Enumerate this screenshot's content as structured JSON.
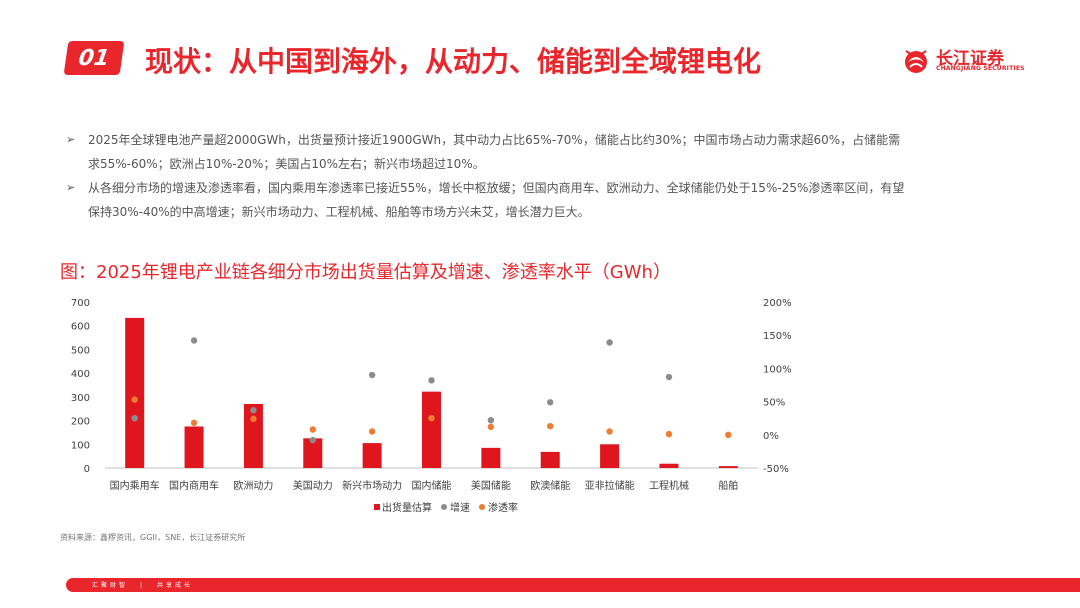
{
  "header": {
    "badge": "01",
    "title": "现状：从中国到海外，从动力、储能到全域锂电化"
  },
  "brand": {
    "name": "长江证券",
    "sub": "CHANGJIANG SECURITIES"
  },
  "bullets": [
    "2025年全球锂电池产量超2000GWh，出货量预计接近1900GWh，其中动力占比65%-70%，储能占比约30%；中国市场占动力需求超60%，占储能需求55%-60%；欧洲占10%-20%；美国占10%左右；新兴市场超过10%。",
    "从各细分市场的增速及渗透率看，国内乘用车渗透率已接近55%，增长中枢放缓；但国内商用车、欧洲动力、全球储能仍处于15%-25%渗透率区间，有望保持30%-40%的中高增速；新兴市场动力、工程机械、船舶等市场方兴未艾，增长潜力巨大。"
  ],
  "chart_title": "图：2025年锂电产业链各细分市场出货量估算及增速、渗透率水平（GWh）",
  "source": "资料来源：鑫椤资讯，GGII，SNE，长江证券研究所",
  "footer": {
    "left": "汇聚财智",
    "right": "共享成长"
  },
  "colors": {
    "accent": "#e8262c",
    "bar": "#e0161e",
    "growth": "#8c8c8c",
    "penetration": "#ed7d31"
  },
  "chart_data": {
    "type": "bar",
    "categories": [
      "国内乘用车",
      "国内商用车",
      "欧洲动力",
      "美国动力",
      "新兴市场动力",
      "国内储能",
      "美国储能",
      "欧澳储能",
      "亚非拉储能",
      "工程机械",
      "船舶"
    ],
    "series": [
      {
        "name": "出货量估算",
        "type": "bar",
        "axis": "left",
        "values": [
          633,
          175,
          270,
          125,
          105,
          322,
          85,
          68,
          100,
          18,
          8
        ]
      },
      {
        "name": "增速",
        "type": "scatter",
        "axis": "right",
        "values": [
          0.25,
          1.42,
          0.37,
          -0.08,
          0.9,
          0.82,
          0.22,
          0.49,
          1.39,
          0.87,
          null
        ]
      },
      {
        "name": "渗透率",
        "type": "scatter",
        "axis": "right",
        "values": [
          0.53,
          0.18,
          0.24,
          0.08,
          0.05,
          0.25,
          0.12,
          0.13,
          0.05,
          0.01,
          0.0
        ]
      }
    ],
    "y_left": {
      "min": 0,
      "max": 700,
      "ticks": [
        0,
        100,
        200,
        300,
        400,
        500,
        600,
        700
      ]
    },
    "y_right": {
      "min": -0.5,
      "max": 2.0,
      "ticks": [
        "-50%",
        "0%",
        "50%",
        "100%",
        "150%",
        "200%"
      ]
    },
    "grid": false,
    "legend": "bottom-center"
  }
}
